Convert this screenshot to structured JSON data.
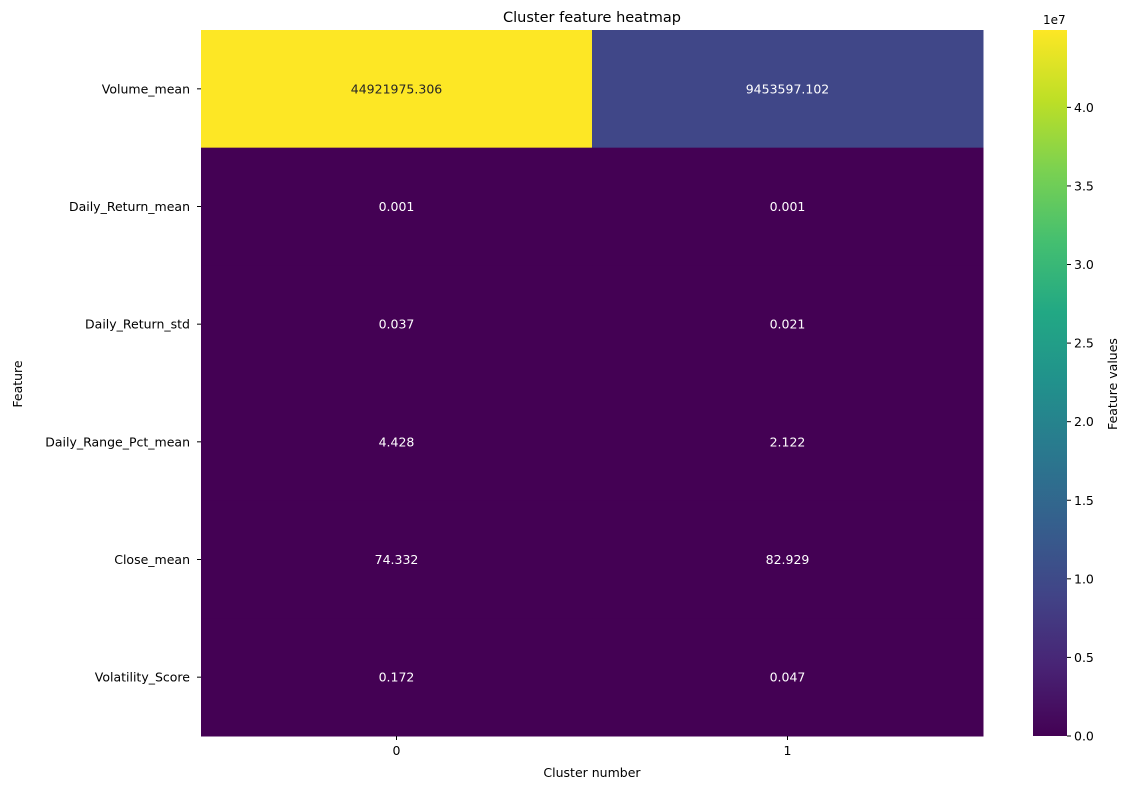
{
  "chart_data": {
    "type": "heatmap",
    "title": "Cluster feature heatmap",
    "xlabel": "Cluster number",
    "ylabel": "Feature",
    "x_categories": [
      "0",
      "1"
    ],
    "y_categories": [
      "Volume_mean",
      "Daily_Return_mean",
      "Daily_Return_std",
      "Daily_Range_Pct_mean",
      "Close_mean",
      "Volatility_Score"
    ],
    "values": [
      [
        44921975.306,
        9453597.102
      ],
      [
        0.001,
        0.001
      ],
      [
        0.037,
        0.021
      ],
      [
        4.428,
        2.122
      ],
      [
        74.332,
        82.929
      ],
      [
        0.172,
        0.047
      ]
    ],
    "annotations": [
      [
        "44921975.306",
        "9453597.102"
      ],
      [
        "0.001",
        "0.001"
      ],
      [
        "0.037",
        "0.021"
      ],
      [
        "4.428",
        "2.122"
      ],
      [
        "74.332",
        "82.929"
      ],
      [
        "0.172",
        "0.047"
      ]
    ],
    "colormap": "viridis",
    "colorbar": {
      "label": "Feature values",
      "range": [
        0,
        44921975.306
      ],
      "tick_values": [
        0,
        5000000,
        10000000,
        15000000,
        20000000,
        25000000,
        30000000,
        35000000,
        40000000
      ],
      "tick_labels": [
        "0.0",
        "0.5",
        "1.0",
        "1.5",
        "2.0",
        "2.5",
        "3.0",
        "3.5",
        "4.0"
      ],
      "offset_label": "1e7"
    }
  }
}
